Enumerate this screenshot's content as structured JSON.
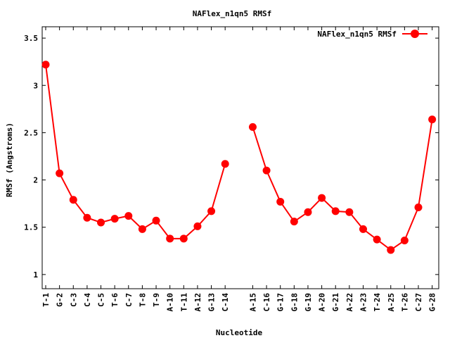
{
  "chart_data": {
    "type": "line",
    "title": "NAFlex_n1qn5 RMSf",
    "xlabel": "Nucleotide",
    "ylabel": "RMSf (Angstroms)",
    "ylim": [
      0.85,
      3.62
    ],
    "yticks": [
      1,
      1.5,
      2,
      2.5,
      3,
      3.5
    ],
    "ytick_labels": [
      "1",
      "1.5",
      "2",
      "2.5",
      "3",
      "3.5"
    ],
    "legend_position": "top-right",
    "series_color": "#ff0000",
    "series": [
      {
        "name": "NAFlex_n1qn5 RMSf",
        "segments": [
          {
            "categories": [
              "T-1",
              "G-2",
              "C-3",
              "C-4",
              "C-5",
              "T-6",
              "C-7",
              "T-8",
              "T-9",
              "A-10",
              "T-11",
              "A-12",
              "G-13",
              "C-14"
            ],
            "values": [
              3.22,
              2.07,
              1.79,
              1.6,
              1.55,
              1.59,
              1.62,
              1.48,
              1.57,
              1.38,
              1.38,
              1.51,
              1.67,
              2.17
            ]
          },
          {
            "categories": [
              "A-15",
              "C-16",
              "G-17",
              "G-18",
              "G-19",
              "A-20",
              "G-21",
              "A-22",
              "A-23",
              "T-24",
              "A-25",
              "T-26",
              "C-27",
              "G-28"
            ],
            "values": [
              2.56,
              2.1,
              1.77,
              1.56,
              1.66,
              1.81,
              1.67,
              1.66,
              1.48,
              1.37,
              1.26,
              1.36,
              1.71,
              2.64
            ]
          }
        ]
      }
    ]
  }
}
